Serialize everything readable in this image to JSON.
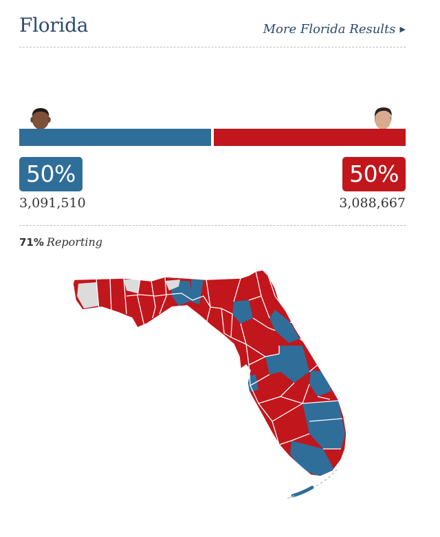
{
  "header": {
    "title": "Florida",
    "more_link": "More Florida Results",
    "more_arrow": "▶"
  },
  "colors": {
    "dem": "#2f6e99",
    "rep": "#c1161c",
    "no_data": "#dcdcdc",
    "title": "#2c4a6b"
  },
  "candidates": [
    {
      "party": "dem",
      "photo_icon": "candidate-portrait-icon",
      "percent": "50%",
      "votes": "3,091,510",
      "share": 0.5
    },
    {
      "party": "rep",
      "photo_icon": "candidate-portrait-icon",
      "percent": "50%",
      "votes": "3,088,667",
      "share": 0.5
    }
  ],
  "reporting": {
    "percent": "71%",
    "label": "Reporting"
  }
}
